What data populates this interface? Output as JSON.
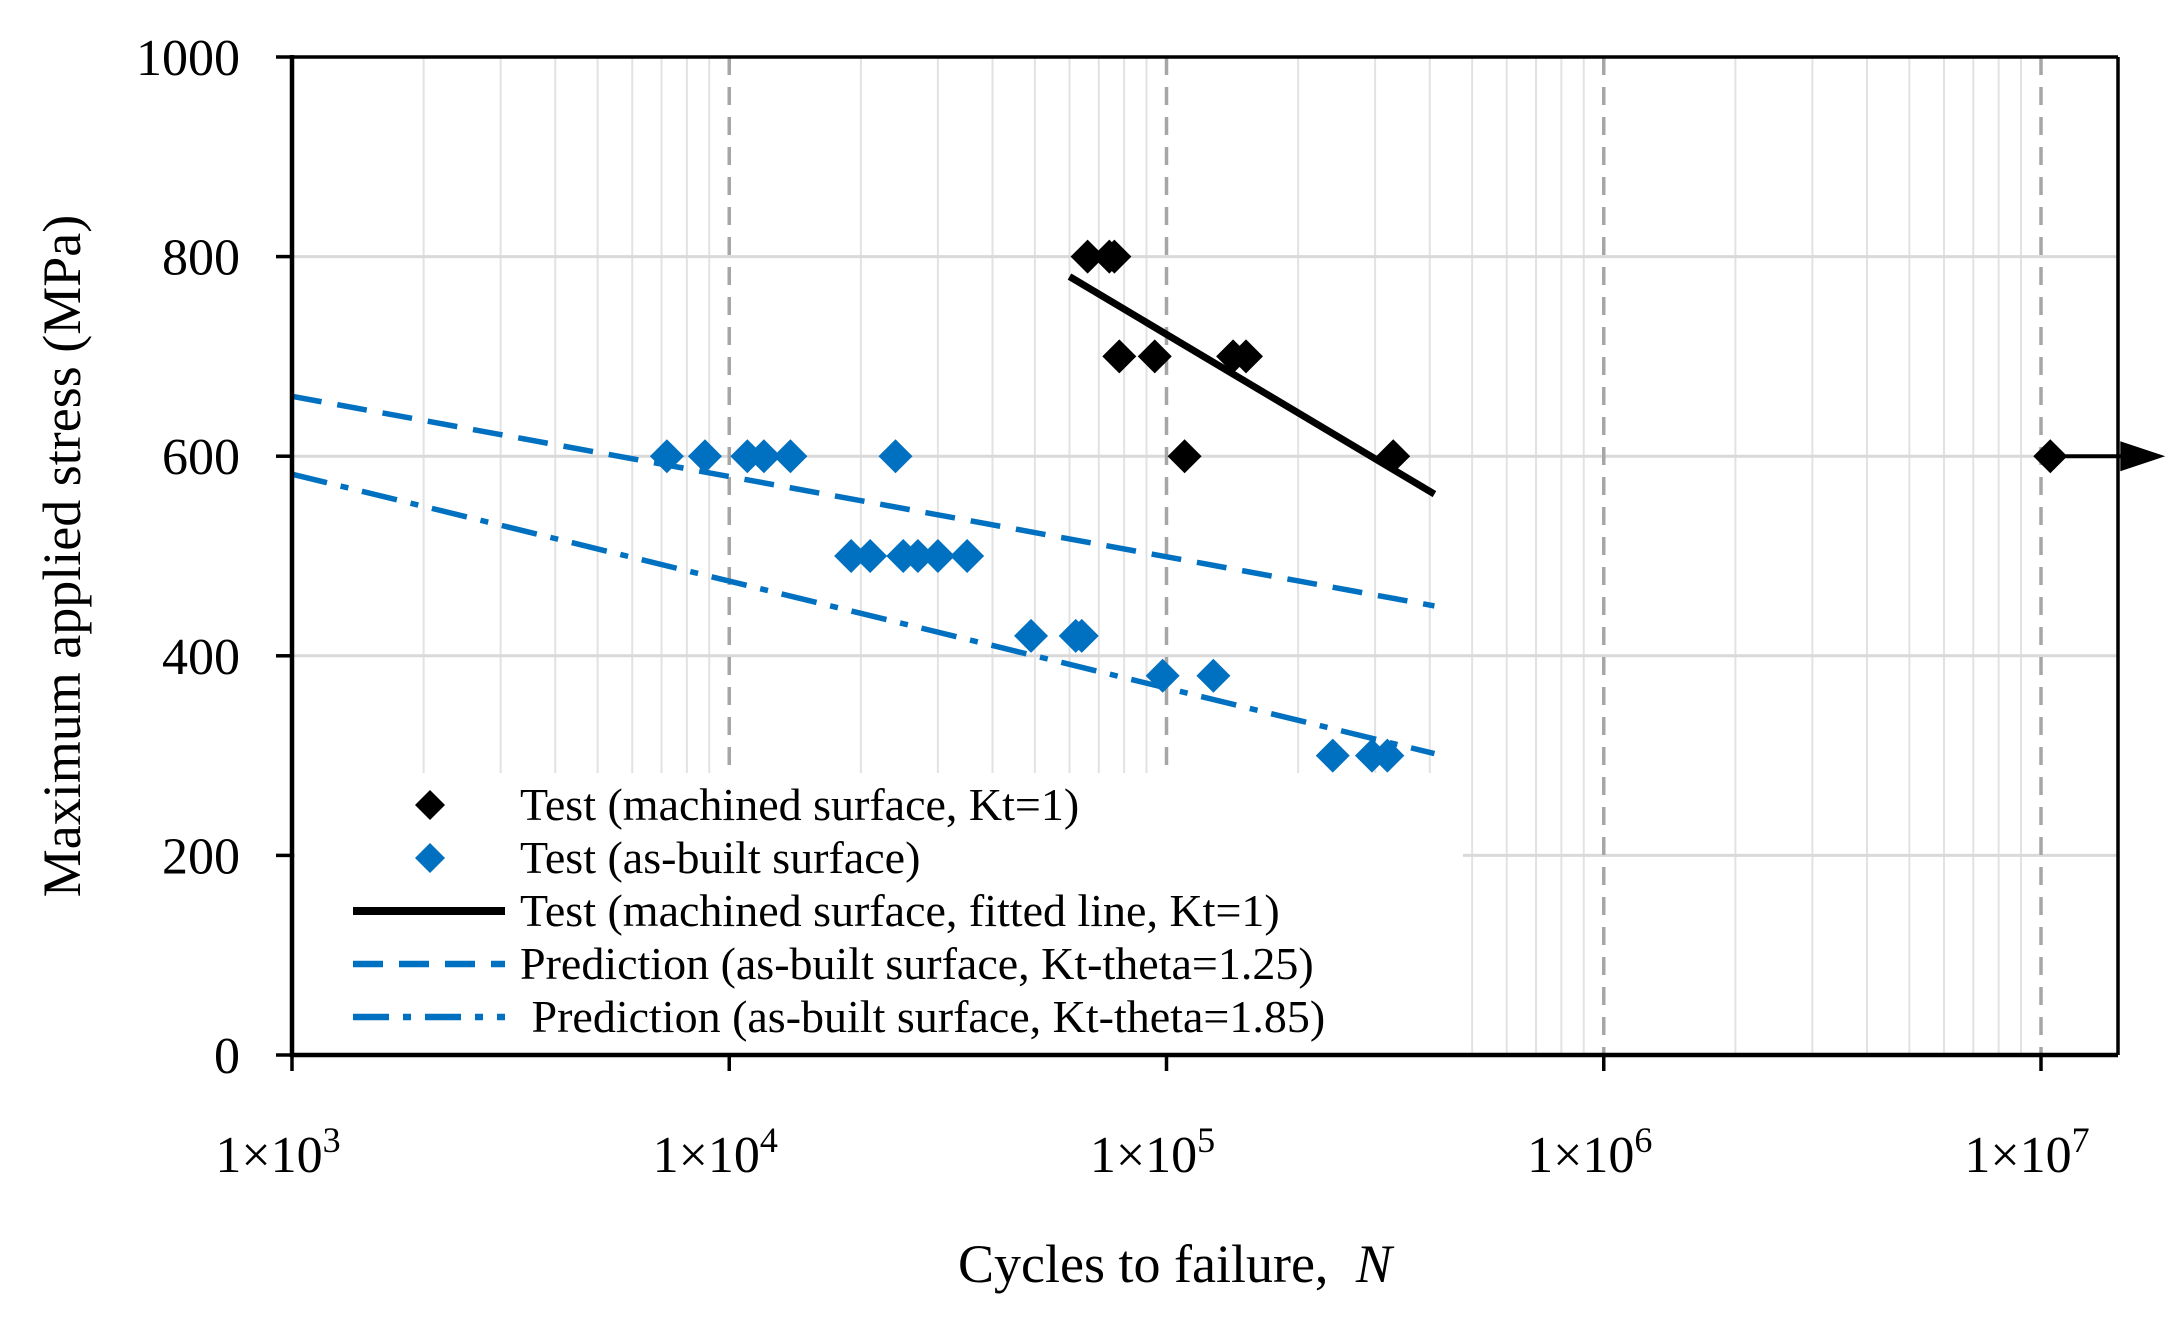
{
  "chart_data": {
    "type": "scatter",
    "title": "",
    "xlabel": "Cycles to failure,",
    "xlabel_var": "N",
    "ylabel": "Maximum applied stress (MPa)",
    "xscale": "log",
    "xlim": [
      1000,
      15000000
    ],
    "ylim": [
      0,
      1000
    ],
    "y_ticks": [
      0,
      200,
      400,
      600,
      800,
      1000
    ],
    "x_ticks": [
      {
        "value": 1000,
        "label": "1×10",
        "exp": "3"
      },
      {
        "value": 10000,
        "label": "1×10",
        "exp": "4"
      },
      {
        "value": 100000,
        "label": "1×10",
        "exp": "5"
      },
      {
        "value": 1000000,
        "label": "1×10",
        "exp": "6"
      },
      {
        "value": 10000000,
        "label": "1×10",
        "exp": "7"
      }
    ],
    "grid": true,
    "legend_position": "bottom-left",
    "series": [
      {
        "name": "Test (machined surface, Kt=1)",
        "kind": "scatter",
        "marker": "diamond",
        "color": "#000000",
        "points": [
          {
            "x": 66000,
            "y": 800
          },
          {
            "x": 74000,
            "y": 800
          },
          {
            "x": 76000,
            "y": 800
          },
          {
            "x": 78000,
            "y": 700
          },
          {
            "x": 94000,
            "y": 700
          },
          {
            "x": 142000,
            "y": 700
          },
          {
            "x": 152000,
            "y": 700
          },
          {
            "x": 110000,
            "y": 600
          },
          {
            "x": 330000,
            "y": 600
          },
          {
            "x": 10500000,
            "y": 600
          }
        ]
      },
      {
        "name": "Test (as-built surface)",
        "kind": "scatter",
        "marker": "diamond",
        "color": "#0070C0",
        "points": [
          {
            "x": 7200,
            "y": 600
          },
          {
            "x": 8800,
            "y": 600
          },
          {
            "x": 11000,
            "y": 600
          },
          {
            "x": 12000,
            "y": 600
          },
          {
            "x": 13800,
            "y": 600
          },
          {
            "x": 24000,
            "y": 600
          },
          {
            "x": 19000,
            "y": 500
          },
          {
            "x": 21000,
            "y": 500
          },
          {
            "x": 25000,
            "y": 500
          },
          {
            "x": 27000,
            "y": 500
          },
          {
            "x": 30000,
            "y": 500
          },
          {
            "x": 35000,
            "y": 500
          },
          {
            "x": 49000,
            "y": 420
          },
          {
            "x": 62000,
            "y": 420
          },
          {
            "x": 64000,
            "y": 420
          },
          {
            "x": 98000,
            "y": 380
          },
          {
            "x": 128000,
            "y": 380
          },
          {
            "x": 240000,
            "y": 300
          },
          {
            "x": 295000,
            "y": 300
          },
          {
            "x": 320000,
            "y": 300
          }
        ]
      },
      {
        "name": "Test (machined surface, fitted line, Kt=1)",
        "kind": "line",
        "style": "solid",
        "color": "#000000",
        "points": [
          {
            "x": 60000,
            "y": 780
          },
          {
            "x": 410000,
            "y": 562
          }
        ]
      },
      {
        "name": "Prediction (as-built surface, Kt-theta=1.25)",
        "kind": "line",
        "style": "dashed",
        "color": "#0070C0",
        "points": [
          {
            "x": 1000,
            "y": 660
          },
          {
            "x": 410000,
            "y": 450
          }
        ]
      },
      {
        "name": " Prediction (as-built surface, Kt-theta=1.85)",
        "kind": "line",
        "style": "dashdot",
        "color": "#0070C0",
        "points": [
          {
            "x": 1000,
            "y": 582
          },
          {
            "x": 410000,
            "y": 302
          }
        ]
      }
    ],
    "annotations": [
      {
        "type": "runout-arrow",
        "x": 10500000,
        "y": 600,
        "color": "#000000"
      }
    ]
  }
}
